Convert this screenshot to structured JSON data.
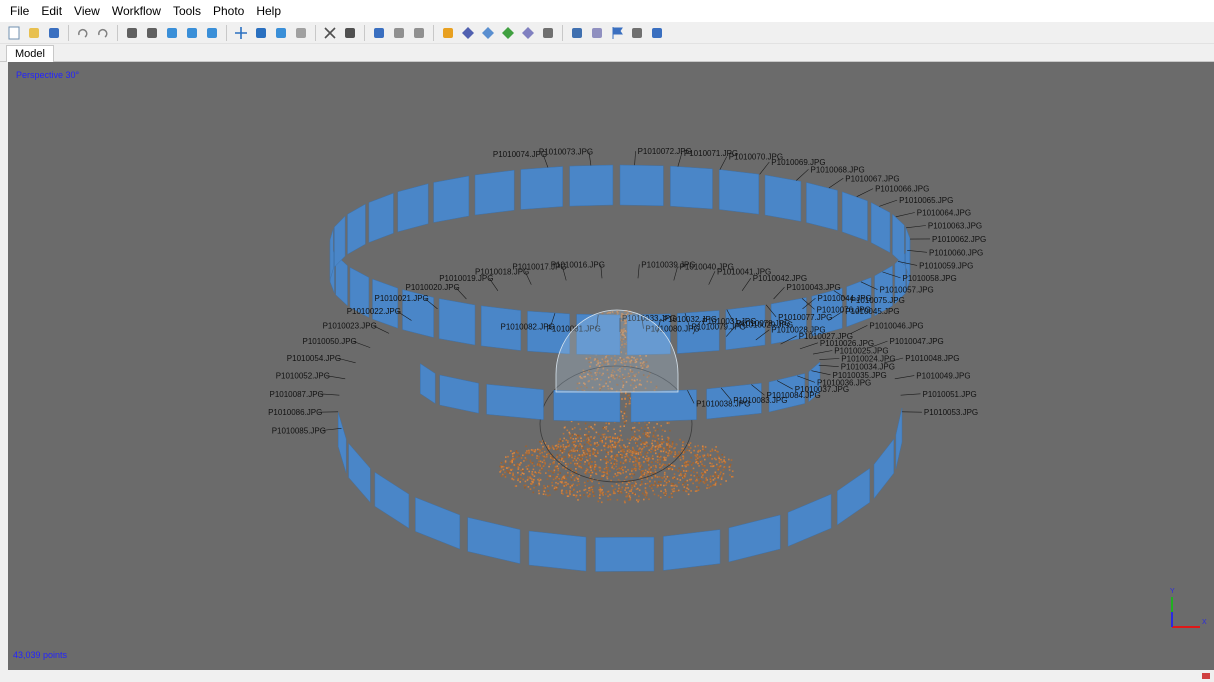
{
  "menu": [
    "File",
    "Edit",
    "View",
    "Workflow",
    "Tools",
    "Photo",
    "Help"
  ],
  "tabs": [
    {
      "label": "Model"
    }
  ],
  "viewport": {
    "view_mode": "Perspective 30°",
    "point_count": "43,039 points",
    "axis_labels": {
      "x": "X",
      "y": "Y"
    }
  },
  "colors": {
    "viewport_bg": "#6b6b6b",
    "camera_plane": "#4a86c8",
    "overlay_text": "#2323ff",
    "point_cloud": "#c8843c"
  },
  "toolbar_icons": [
    "new-icon",
    "open-icon",
    "save-icon",
    "undo-icon",
    "redo-icon",
    "pointer-icon",
    "rect-select-icon",
    "navigate-icon",
    "rotate-object-icon",
    "move-object-icon",
    "add-marker-icon",
    "ruler-icon",
    "shape-icon",
    "brush-icon",
    "delete-icon",
    "crop-icon",
    "show-cameras-icon",
    "grid-icon",
    "image-icon",
    "point-cloud-icon",
    "dense-cloud-icon",
    "mesh-solid-icon",
    "mesh-shaded-icon",
    "tiled-model-icon",
    "dem-icon",
    "show-images-icon",
    "shield-icon",
    "flag-icon",
    "markers-icon",
    "axis-icon"
  ],
  "cameras_upper": [
    "P1010074.JPG",
    "P1010073.JPG",
    "P1010072.JPG",
    "P1010071.JPG",
    "P1010070.JPG",
    "P1010069.JPG",
    "P1010068.JPG",
    "P1010067.JPG",
    "P1010066.JPG",
    "P1010065.JPG",
    "P1010064.JPG",
    "P1010063.JPG",
    "P1010062.JPG",
    "P1010060.JPG",
    "P1010059.JPG",
    "P1010058.JPG",
    "P1010057.JPG",
    "P1010075.JPG",
    "P1010076.JPG",
    "P1010077.JPG",
    "P1010078.JPG",
    "P1010079.JPG",
    "P1010080.JPG",
    "P1010081.JPG",
    "P1010082.JPG"
  ],
  "cameras_middle": [
    "P1010033.JPG",
    "P1010032.JPG",
    "P1010031.JPG",
    "P1010029.JPG",
    "P1010028.JPG",
    "P1010027.JPG",
    "P1010026.JPG",
    "P1010025.JPG",
    "P1010024.JPG",
    "P1010034.JPG",
    "P1010035.JPG",
    "P1010036.JPG",
    "P1010037.JPG",
    "P1010084.JPG",
    "P1010083.JPG",
    "P1010038.JPG"
  ],
  "cameras_lower": [
    "P1010085.JPG",
    "P1010086.JPG",
    "P1010087.JPG",
    "P1010052.JPG",
    "P1010054.JPG",
    "P1010050.JPG",
    "P1010023.JPG",
    "P1010022.JPG",
    "P1010021.JPG",
    "P1010020.JPG",
    "P1010019.JPG",
    "P1010018.JPG",
    "P1010017.JPG",
    "P1010016.JPG",
    "P1010039.JPG",
    "P1010040.JPG",
    "P1010041.JPG",
    "P1010042.JPG",
    "P1010043.JPG",
    "P1010044.JPG",
    "P1010045.JPG",
    "P1010046.JPG",
    "P1010047.JPG",
    "P1010048.JPG",
    "P1010049.JPG",
    "P1010051.JPG",
    "P1010053.JPG"
  ]
}
